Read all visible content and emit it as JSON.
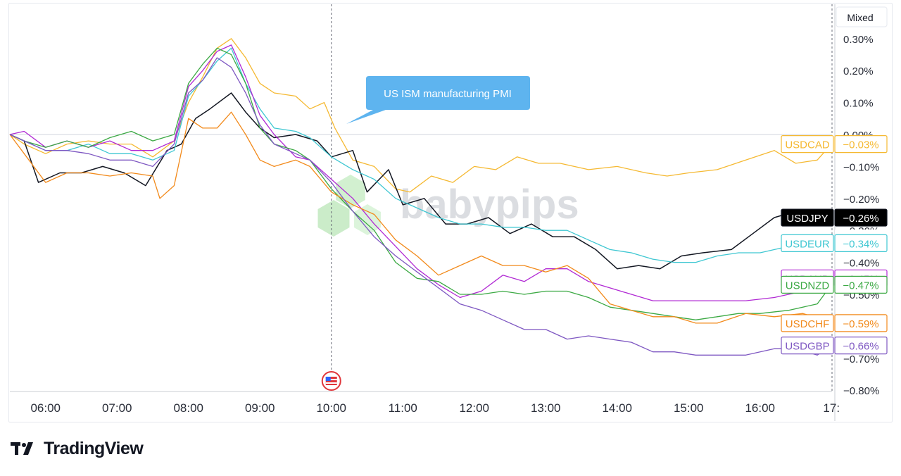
{
  "chart_data": {
    "type": "line",
    "watermark": "babypips",
    "scale_mode": "Mixed",
    "ylim": [
      -0.8,
      0.3
    ],
    "y_ticks": [
      "0.30%",
      "0.20%",
      "0.10%",
      "0.00%",
      "−0.10%",
      "−0.20%",
      "−0.30%",
      "−0.40%",
      "−0.50%",
      "−0.60%",
      "−0.70%",
      "−0.80%"
    ],
    "x_ticks": [
      "06:00",
      "07:00",
      "08:00",
      "09:00",
      "10:00",
      "11:00",
      "12:00",
      "13:00",
      "14:00",
      "15:00",
      "16:00",
      "17:"
    ],
    "x_range_hours": [
      5.5,
      17.0
    ],
    "event": {
      "label": "US ISM manufacturing PMI",
      "time": 10.0,
      "flag_icon": "us-flag-icon"
    },
    "crosshair_value": "−0.30%",
    "colors": {
      "grid_zero": "#d1d4dc",
      "axis": "#2a2e39"
    },
    "series": [
      {
        "name": "USDCAD",
        "value_label": "−0.03%",
        "color": "#f5b932",
        "points": [
          [
            5.5,
            0
          ],
          [
            5.7,
            -0.03
          ],
          [
            6.0,
            -0.06
          ],
          [
            6.3,
            -0.03
          ],
          [
            6.6,
            -0.02
          ],
          [
            6.9,
            -0.03
          ],
          [
            7.2,
            -0.03
          ],
          [
            7.5,
            -0.07
          ],
          [
            7.8,
            -0.02
          ],
          [
            8.0,
            0.1
          ],
          [
            8.2,
            0.18
          ],
          [
            8.4,
            0.27
          ],
          [
            8.6,
            0.3
          ],
          [
            8.8,
            0.24
          ],
          [
            9.0,
            0.16
          ],
          [
            9.2,
            0.13
          ],
          [
            9.5,
            0.12
          ],
          [
            9.7,
            0.08
          ],
          [
            9.9,
            0.1
          ],
          [
            10.05,
            0.02
          ],
          [
            10.3,
            -0.08
          ],
          [
            10.6,
            -0.1
          ],
          [
            10.9,
            -0.17
          ],
          [
            11.1,
            -0.18
          ],
          [
            11.4,
            -0.13
          ],
          [
            11.7,
            -0.15
          ],
          [
            12.0,
            -0.1
          ],
          [
            12.3,
            -0.11
          ],
          [
            12.6,
            -0.07
          ],
          [
            12.9,
            -0.09
          ],
          [
            13.2,
            -0.09
          ],
          [
            13.6,
            -0.11
          ],
          [
            14.0,
            -0.1
          ],
          [
            14.4,
            -0.12
          ],
          [
            14.7,
            -0.13
          ],
          [
            15.0,
            -0.12
          ],
          [
            15.4,
            -0.11
          ],
          [
            15.8,
            -0.08
          ],
          [
            16.2,
            -0.05
          ],
          [
            16.5,
            -0.09
          ],
          [
            16.8,
            -0.08
          ],
          [
            17.0,
            -0.03
          ]
        ]
      },
      {
        "name": "USDJPY",
        "value_label": "−0.26%",
        "color": "#131722",
        "points": [
          [
            5.5,
            0
          ],
          [
            5.7,
            -0.02
          ],
          [
            5.9,
            -0.15
          ],
          [
            6.2,
            -0.12
          ],
          [
            6.5,
            -0.12
          ],
          [
            6.8,
            -0.1
          ],
          [
            7.1,
            -0.12
          ],
          [
            7.4,
            -0.16
          ],
          [
            7.7,
            -0.05
          ],
          [
            7.9,
            -0.03
          ],
          [
            8.1,
            0.05
          ],
          [
            8.3,
            0.08
          ],
          [
            8.6,
            0.13
          ],
          [
            8.8,
            0.07
          ],
          [
            9.0,
            0.02
          ],
          [
            9.2,
            -0.01
          ],
          [
            9.5,
            0.0
          ],
          [
            9.8,
            -0.02
          ],
          [
            10.0,
            -0.07
          ],
          [
            10.3,
            -0.05
          ],
          [
            10.5,
            -0.18
          ],
          [
            10.8,
            -0.11
          ],
          [
            11.0,
            -0.22
          ],
          [
            11.3,
            -0.2
          ],
          [
            11.6,
            -0.28
          ],
          [
            11.9,
            -0.28
          ],
          [
            12.2,
            -0.26
          ],
          [
            12.5,
            -0.31
          ],
          [
            12.8,
            -0.28
          ],
          [
            13.1,
            -0.32
          ],
          [
            13.4,
            -0.32
          ],
          [
            13.7,
            -0.36
          ],
          [
            14.0,
            -0.42
          ],
          [
            14.3,
            -0.41
          ],
          [
            14.6,
            -0.42
          ],
          [
            14.9,
            -0.38
          ],
          [
            15.2,
            -0.37
          ],
          [
            15.6,
            -0.36
          ],
          [
            15.9,
            -0.31
          ],
          [
            16.2,
            -0.26
          ],
          [
            16.5,
            -0.24
          ],
          [
            16.8,
            -0.26
          ],
          [
            17.0,
            -0.26
          ]
        ]
      },
      {
        "name": "USDEUR",
        "value_label": "−0.34%",
        "color": "#3fc7d2",
        "points": [
          [
            5.5,
            0
          ],
          [
            5.7,
            -0.02
          ],
          [
            6.0,
            -0.05
          ],
          [
            6.3,
            -0.05
          ],
          [
            6.6,
            -0.03
          ],
          [
            6.9,
            -0.06
          ],
          [
            7.2,
            -0.06
          ],
          [
            7.5,
            -0.08
          ],
          [
            7.8,
            -0.05
          ],
          [
            8.0,
            0.12
          ],
          [
            8.2,
            0.17
          ],
          [
            8.4,
            0.23
          ],
          [
            8.6,
            0.27
          ],
          [
            8.8,
            0.16
          ],
          [
            9.0,
            0.08
          ],
          [
            9.2,
            0.02
          ],
          [
            9.5,
            0.01
          ],
          [
            9.7,
            -0.01
          ],
          [
            10.0,
            -0.07
          ],
          [
            10.3,
            -0.11
          ],
          [
            10.6,
            -0.14
          ],
          [
            10.9,
            -0.2
          ],
          [
            11.2,
            -0.23
          ],
          [
            11.5,
            -0.26
          ],
          [
            11.8,
            -0.28
          ],
          [
            12.1,
            -0.28
          ],
          [
            12.4,
            -0.29
          ],
          [
            12.7,
            -0.29
          ],
          [
            13.0,
            -0.3
          ],
          [
            13.3,
            -0.3
          ],
          [
            13.6,
            -0.33
          ],
          [
            13.9,
            -0.36
          ],
          [
            14.2,
            -0.37
          ],
          [
            14.5,
            -0.39
          ],
          [
            14.8,
            -0.4
          ],
          [
            15.1,
            -0.4
          ],
          [
            15.4,
            -0.38
          ],
          [
            15.7,
            -0.37
          ],
          [
            16.0,
            -0.37
          ],
          [
            16.4,
            -0.35
          ],
          [
            16.8,
            -0.34
          ],
          [
            17.0,
            -0.34
          ]
        ]
      },
      {
        "name": "USDAUD",
        "value_label": "−0.45%",
        "color": "#b12ad4",
        "points": [
          [
            5.5,
            0
          ],
          [
            5.7,
            0.01
          ],
          [
            6.0,
            -0.04
          ],
          [
            6.3,
            -0.02
          ],
          [
            6.6,
            -0.04
          ],
          [
            6.9,
            -0.02
          ],
          [
            7.2,
            -0.05
          ],
          [
            7.5,
            -0.05
          ],
          [
            7.8,
            -0.02
          ],
          [
            8.0,
            0.15
          ],
          [
            8.2,
            0.2
          ],
          [
            8.4,
            0.26
          ],
          [
            8.6,
            0.28
          ],
          [
            8.8,
            0.18
          ],
          [
            9.0,
            0.06
          ],
          [
            9.2,
            0.0
          ],
          [
            9.5,
            -0.07
          ],
          [
            9.7,
            -0.08
          ],
          [
            10.0,
            -0.14
          ],
          [
            10.3,
            -0.2
          ],
          [
            10.6,
            -0.28
          ],
          [
            10.9,
            -0.35
          ],
          [
            11.2,
            -0.42
          ],
          [
            11.5,
            -0.47
          ],
          [
            11.8,
            -0.51
          ],
          [
            12.1,
            -0.49
          ],
          [
            12.4,
            -0.44
          ],
          [
            12.7,
            -0.46
          ],
          [
            13.0,
            -0.42
          ],
          [
            13.3,
            -0.42
          ],
          [
            13.6,
            -0.46
          ],
          [
            13.9,
            -0.48
          ],
          [
            14.2,
            -0.5
          ],
          [
            14.5,
            -0.52
          ],
          [
            14.8,
            -0.52
          ],
          [
            15.1,
            -0.52
          ],
          [
            15.4,
            -0.52
          ],
          [
            15.8,
            -0.52
          ],
          [
            16.2,
            -0.51
          ],
          [
            16.6,
            -0.49
          ],
          [
            17.0,
            -0.45
          ]
        ]
      },
      {
        "name": "USDNZD",
        "value_label": "−0.47%",
        "color": "#3ca944",
        "points": [
          [
            5.5,
            0
          ],
          [
            5.7,
            -0.02
          ],
          [
            6.0,
            -0.04
          ],
          [
            6.3,
            -0.02
          ],
          [
            6.6,
            -0.04
          ],
          [
            6.9,
            -0.01
          ],
          [
            7.2,
            0.01
          ],
          [
            7.5,
            -0.02
          ],
          [
            7.8,
            0.0
          ],
          [
            8.0,
            0.16
          ],
          [
            8.2,
            0.22
          ],
          [
            8.4,
            0.27
          ],
          [
            8.6,
            0.25
          ],
          [
            8.8,
            0.16
          ],
          [
            9.0,
            0.02
          ],
          [
            9.2,
            -0.03
          ],
          [
            9.5,
            -0.05
          ],
          [
            9.7,
            -0.08
          ],
          [
            10.0,
            -0.17
          ],
          [
            10.3,
            -0.24
          ],
          [
            10.6,
            -0.3
          ],
          [
            10.9,
            -0.4
          ],
          [
            11.2,
            -0.45
          ],
          [
            11.5,
            -0.46
          ],
          [
            11.8,
            -0.5
          ],
          [
            12.1,
            -0.5
          ],
          [
            12.4,
            -0.49
          ],
          [
            12.7,
            -0.5
          ],
          [
            13.0,
            -0.49
          ],
          [
            13.3,
            -0.49
          ],
          [
            13.6,
            -0.51
          ],
          [
            13.9,
            -0.54
          ],
          [
            14.2,
            -0.55
          ],
          [
            14.5,
            -0.56
          ],
          [
            14.8,
            -0.57
          ],
          [
            15.1,
            -0.58
          ],
          [
            15.4,
            -0.57
          ],
          [
            15.7,
            -0.56
          ],
          [
            16.0,
            -0.56
          ],
          [
            16.4,
            -0.55
          ],
          [
            16.8,
            -0.53
          ],
          [
            17.0,
            -0.47
          ]
        ]
      },
      {
        "name": "USDCHF",
        "value_label": "−0.59%",
        "color": "#f28a1b",
        "points": [
          [
            5.5,
            0
          ],
          [
            5.7,
            -0.06
          ],
          [
            6.0,
            -0.15
          ],
          [
            6.3,
            -0.12
          ],
          [
            6.6,
            -0.12
          ],
          [
            6.9,
            -0.13
          ],
          [
            7.2,
            -0.12
          ],
          [
            7.5,
            -0.13
          ],
          [
            7.6,
            -0.2
          ],
          [
            7.8,
            -0.16
          ],
          [
            8.0,
            0.05
          ],
          [
            8.2,
            0.02
          ],
          [
            8.4,
            0.02
          ],
          [
            8.6,
            0.07
          ],
          [
            8.8,
            0.0
          ],
          [
            9.0,
            -0.08
          ],
          [
            9.2,
            -0.1
          ],
          [
            9.5,
            -0.08
          ],
          [
            9.7,
            -0.1
          ],
          [
            10.0,
            -0.18
          ],
          [
            10.3,
            -0.22
          ],
          [
            10.6,
            -0.25
          ],
          [
            10.9,
            -0.33
          ],
          [
            11.2,
            -0.38
          ],
          [
            11.5,
            -0.44
          ],
          [
            11.8,
            -0.41
          ],
          [
            12.1,
            -0.38
          ],
          [
            12.4,
            -0.41
          ],
          [
            12.7,
            -0.41
          ],
          [
            13.0,
            -0.43
          ],
          [
            13.3,
            -0.41
          ],
          [
            13.6,
            -0.45
          ],
          [
            13.9,
            -0.53
          ],
          [
            14.2,
            -0.55
          ],
          [
            14.5,
            -0.57
          ],
          [
            14.8,
            -0.57
          ],
          [
            15.1,
            -0.59
          ],
          [
            15.4,
            -0.59
          ],
          [
            15.8,
            -0.56
          ],
          [
            16.2,
            -0.57
          ],
          [
            16.6,
            -0.56
          ],
          [
            17.0,
            -0.59
          ]
        ]
      },
      {
        "name": "USDGBP",
        "value_label": "−0.66%",
        "color": "#7e57c2",
        "points": [
          [
            5.5,
            0
          ],
          [
            5.7,
            -0.02
          ],
          [
            6.0,
            -0.05
          ],
          [
            6.3,
            -0.05
          ],
          [
            6.6,
            -0.06
          ],
          [
            6.9,
            -0.08
          ],
          [
            7.2,
            -0.08
          ],
          [
            7.5,
            -0.1
          ],
          [
            7.8,
            -0.03
          ],
          [
            8.0,
            0.13
          ],
          [
            8.2,
            0.17
          ],
          [
            8.4,
            0.24
          ],
          [
            8.6,
            0.21
          ],
          [
            8.8,
            0.13
          ],
          [
            9.0,
            0.03
          ],
          [
            9.2,
            -0.03
          ],
          [
            9.5,
            -0.06
          ],
          [
            9.7,
            -0.08
          ],
          [
            10.0,
            -0.15
          ],
          [
            10.3,
            -0.24
          ],
          [
            10.6,
            -0.32
          ],
          [
            10.9,
            -0.38
          ],
          [
            11.2,
            -0.43
          ],
          [
            11.5,
            -0.48
          ],
          [
            11.8,
            -0.53
          ],
          [
            12.1,
            -0.55
          ],
          [
            12.4,
            -0.58
          ],
          [
            12.7,
            -0.61
          ],
          [
            13.0,
            -0.61
          ],
          [
            13.3,
            -0.64
          ],
          [
            13.6,
            -0.63
          ],
          [
            13.9,
            -0.64
          ],
          [
            14.2,
            -0.65
          ],
          [
            14.5,
            -0.68
          ],
          [
            14.8,
            -0.68
          ],
          [
            15.1,
            -0.69
          ],
          [
            15.4,
            -0.69
          ],
          [
            15.8,
            -0.69
          ],
          [
            16.2,
            -0.67
          ],
          [
            16.5,
            -0.67
          ],
          [
            16.8,
            -0.69
          ],
          [
            17.0,
            -0.66
          ]
        ]
      }
    ]
  },
  "footer": {
    "brand": "TradingView"
  }
}
